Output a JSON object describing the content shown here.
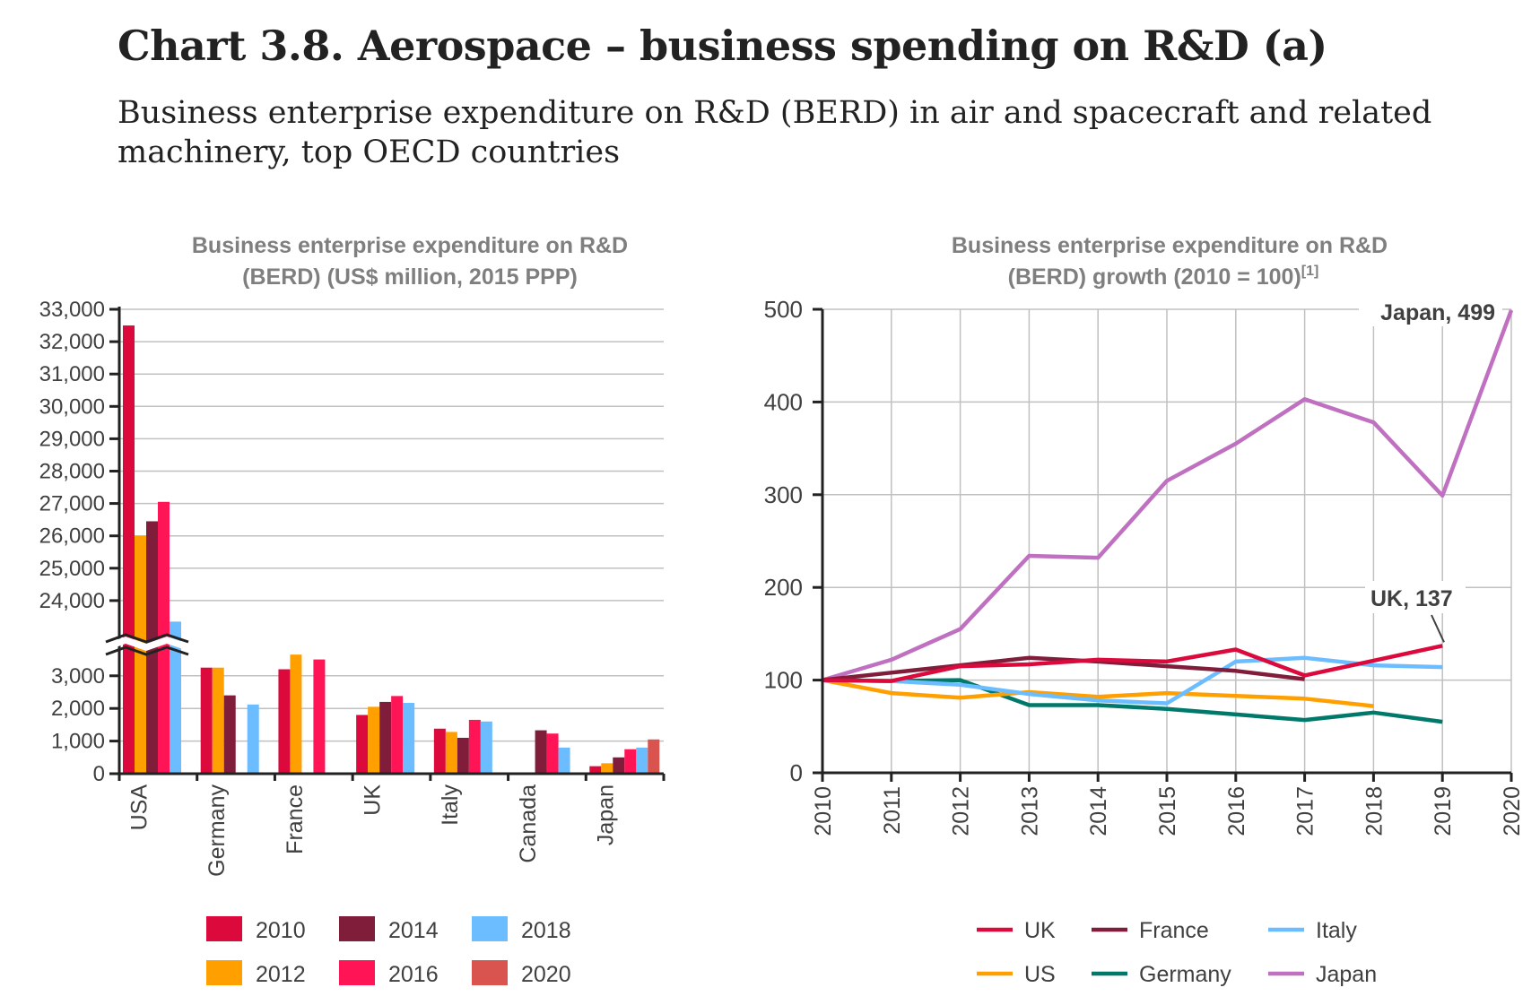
{
  "header": {
    "title": "Chart 3.8. Aerospace – business spending on R&D (a)",
    "subtitle": "Business enterprise expenditure on R&D (BERD) in air and spacecraft and related machinery, top OECD countries"
  },
  "chart_data": [
    {
      "type": "bar",
      "title_line1": "Business enterprise expenditure on R&D",
      "title_line2": "(BERD) (US$ million, 2015 PPP)",
      "xlabel": "",
      "ylabel": "",
      "axis_break": {
        "lower_max": 3700,
        "upper_min": 23300
      },
      "lower_ticks": [
        0,
        1000,
        2000,
        3000
      ],
      "upper_ticks": [
        24000,
        25000,
        26000,
        27000,
        28000,
        29000,
        30000,
        31000,
        32000,
        33000
      ],
      "tick_labels_lower": [
        "0",
        "1,000",
        "2,000",
        "3,000"
      ],
      "tick_labels_upper": [
        "24,000",
        "25,000",
        "26,000",
        "27,000",
        "28,000",
        "29,000",
        "30,000",
        "31,000",
        "32,000",
        "33,000"
      ],
      "categories": [
        "USA",
        "Germany",
        "France",
        "UK",
        "Italy",
        "Canada",
        "Japan"
      ],
      "grid": true,
      "legend_position": "bottom",
      "series": [
        {
          "name": "2010",
          "color": "#DC0A3C",
          "values": [
            32500,
            3250,
            3200,
            1800,
            1380,
            null,
            230
          ]
        },
        {
          "name": "2012",
          "color": "#FF9F00",
          "values": [
            26000,
            3250,
            3650,
            2050,
            1280,
            null,
            320
          ]
        },
        {
          "name": "2014",
          "color": "#7F1D3A",
          "values": [
            26450,
            2400,
            null,
            2200,
            1100,
            1330,
            500
          ]
        },
        {
          "name": "2016",
          "color": "#FF1456",
          "values": [
            27050,
            null,
            3500,
            2380,
            1650,
            1230,
            750
          ]
        },
        {
          "name": "2018",
          "color": "#6BBDFF",
          "values": [
            23350,
            2120,
            null,
            2170,
            1600,
            800,
            800
          ]
        },
        {
          "name": "2020",
          "color": "#D9534F",
          "values": [
            null,
            null,
            null,
            null,
            null,
            null,
            1050
          ]
        }
      ]
    },
    {
      "type": "line",
      "title_line1": "Business enterprise expenditure on R&D",
      "title_line2": "(BERD) growth (2010 = 100)",
      "title_footnote": "[1]",
      "xlabel": "",
      "ylabel": "",
      "x": [
        "2010",
        "2011",
        "2012",
        "2013",
        "2014",
        "2015",
        "2016",
        "2017",
        "2018",
        "2019",
        "2020"
      ],
      "ylim": [
        0,
        500
      ],
      "yticks": [
        0,
        100,
        200,
        300,
        400,
        500
      ],
      "grid": true,
      "legend_position": "bottom",
      "annotations": [
        {
          "series": "Japan",
          "text": "Japan, 499"
        },
        {
          "series": "UK",
          "text": "UK, 137"
        }
      ],
      "series": [
        {
          "name": "UK",
          "color": "#DC0A3C",
          "values": [
            100,
            99,
            115,
            117,
            122,
            120,
            133,
            105,
            121,
            137,
            null
          ]
        },
        {
          "name": "France",
          "color": "#7F1D3A",
          "values": [
            100,
            108,
            116,
            124,
            120,
            115,
            110,
            101,
            null,
            null,
            null
          ]
        },
        {
          "name": "Italy",
          "color": "#6BBDFF",
          "values": [
            100,
            99,
            95,
            85,
            78,
            75,
            120,
            124,
            116,
            114,
            null
          ]
        },
        {
          "name": "US",
          "color": "#FF9F00",
          "values": [
            100,
            86,
            81,
            87,
            82,
            86,
            83,
            80,
            72,
            null,
            null
          ]
        },
        {
          "name": "Germany",
          "color": "#00796B",
          "values": [
            100,
            99,
            100,
            73,
            73,
            69,
            63,
            57,
            65,
            55,
            null
          ]
        },
        {
          "name": "Japan",
          "color": "#C070C0",
          "values": [
            100,
            122,
            155,
            234,
            232,
            315,
            355,
            403,
            378,
            299,
            499
          ]
        }
      ]
    }
  ]
}
